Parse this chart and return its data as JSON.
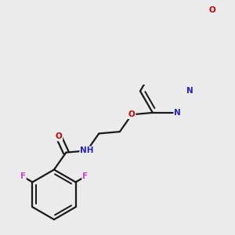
{
  "background_color": "#ebebeb",
  "bond_color": "#1a1a1a",
  "bond_width": 1.6,
  "atom_colors": {
    "O": "#cc0000",
    "N": "#2222cc",
    "F": "#cc44cc",
    "C": "#1a1a1a",
    "H": "#444444"
  },
  "font_size_atom": 8.5,
  "font_size_small": 7.5,
  "font_size_tiny": 6.5
}
